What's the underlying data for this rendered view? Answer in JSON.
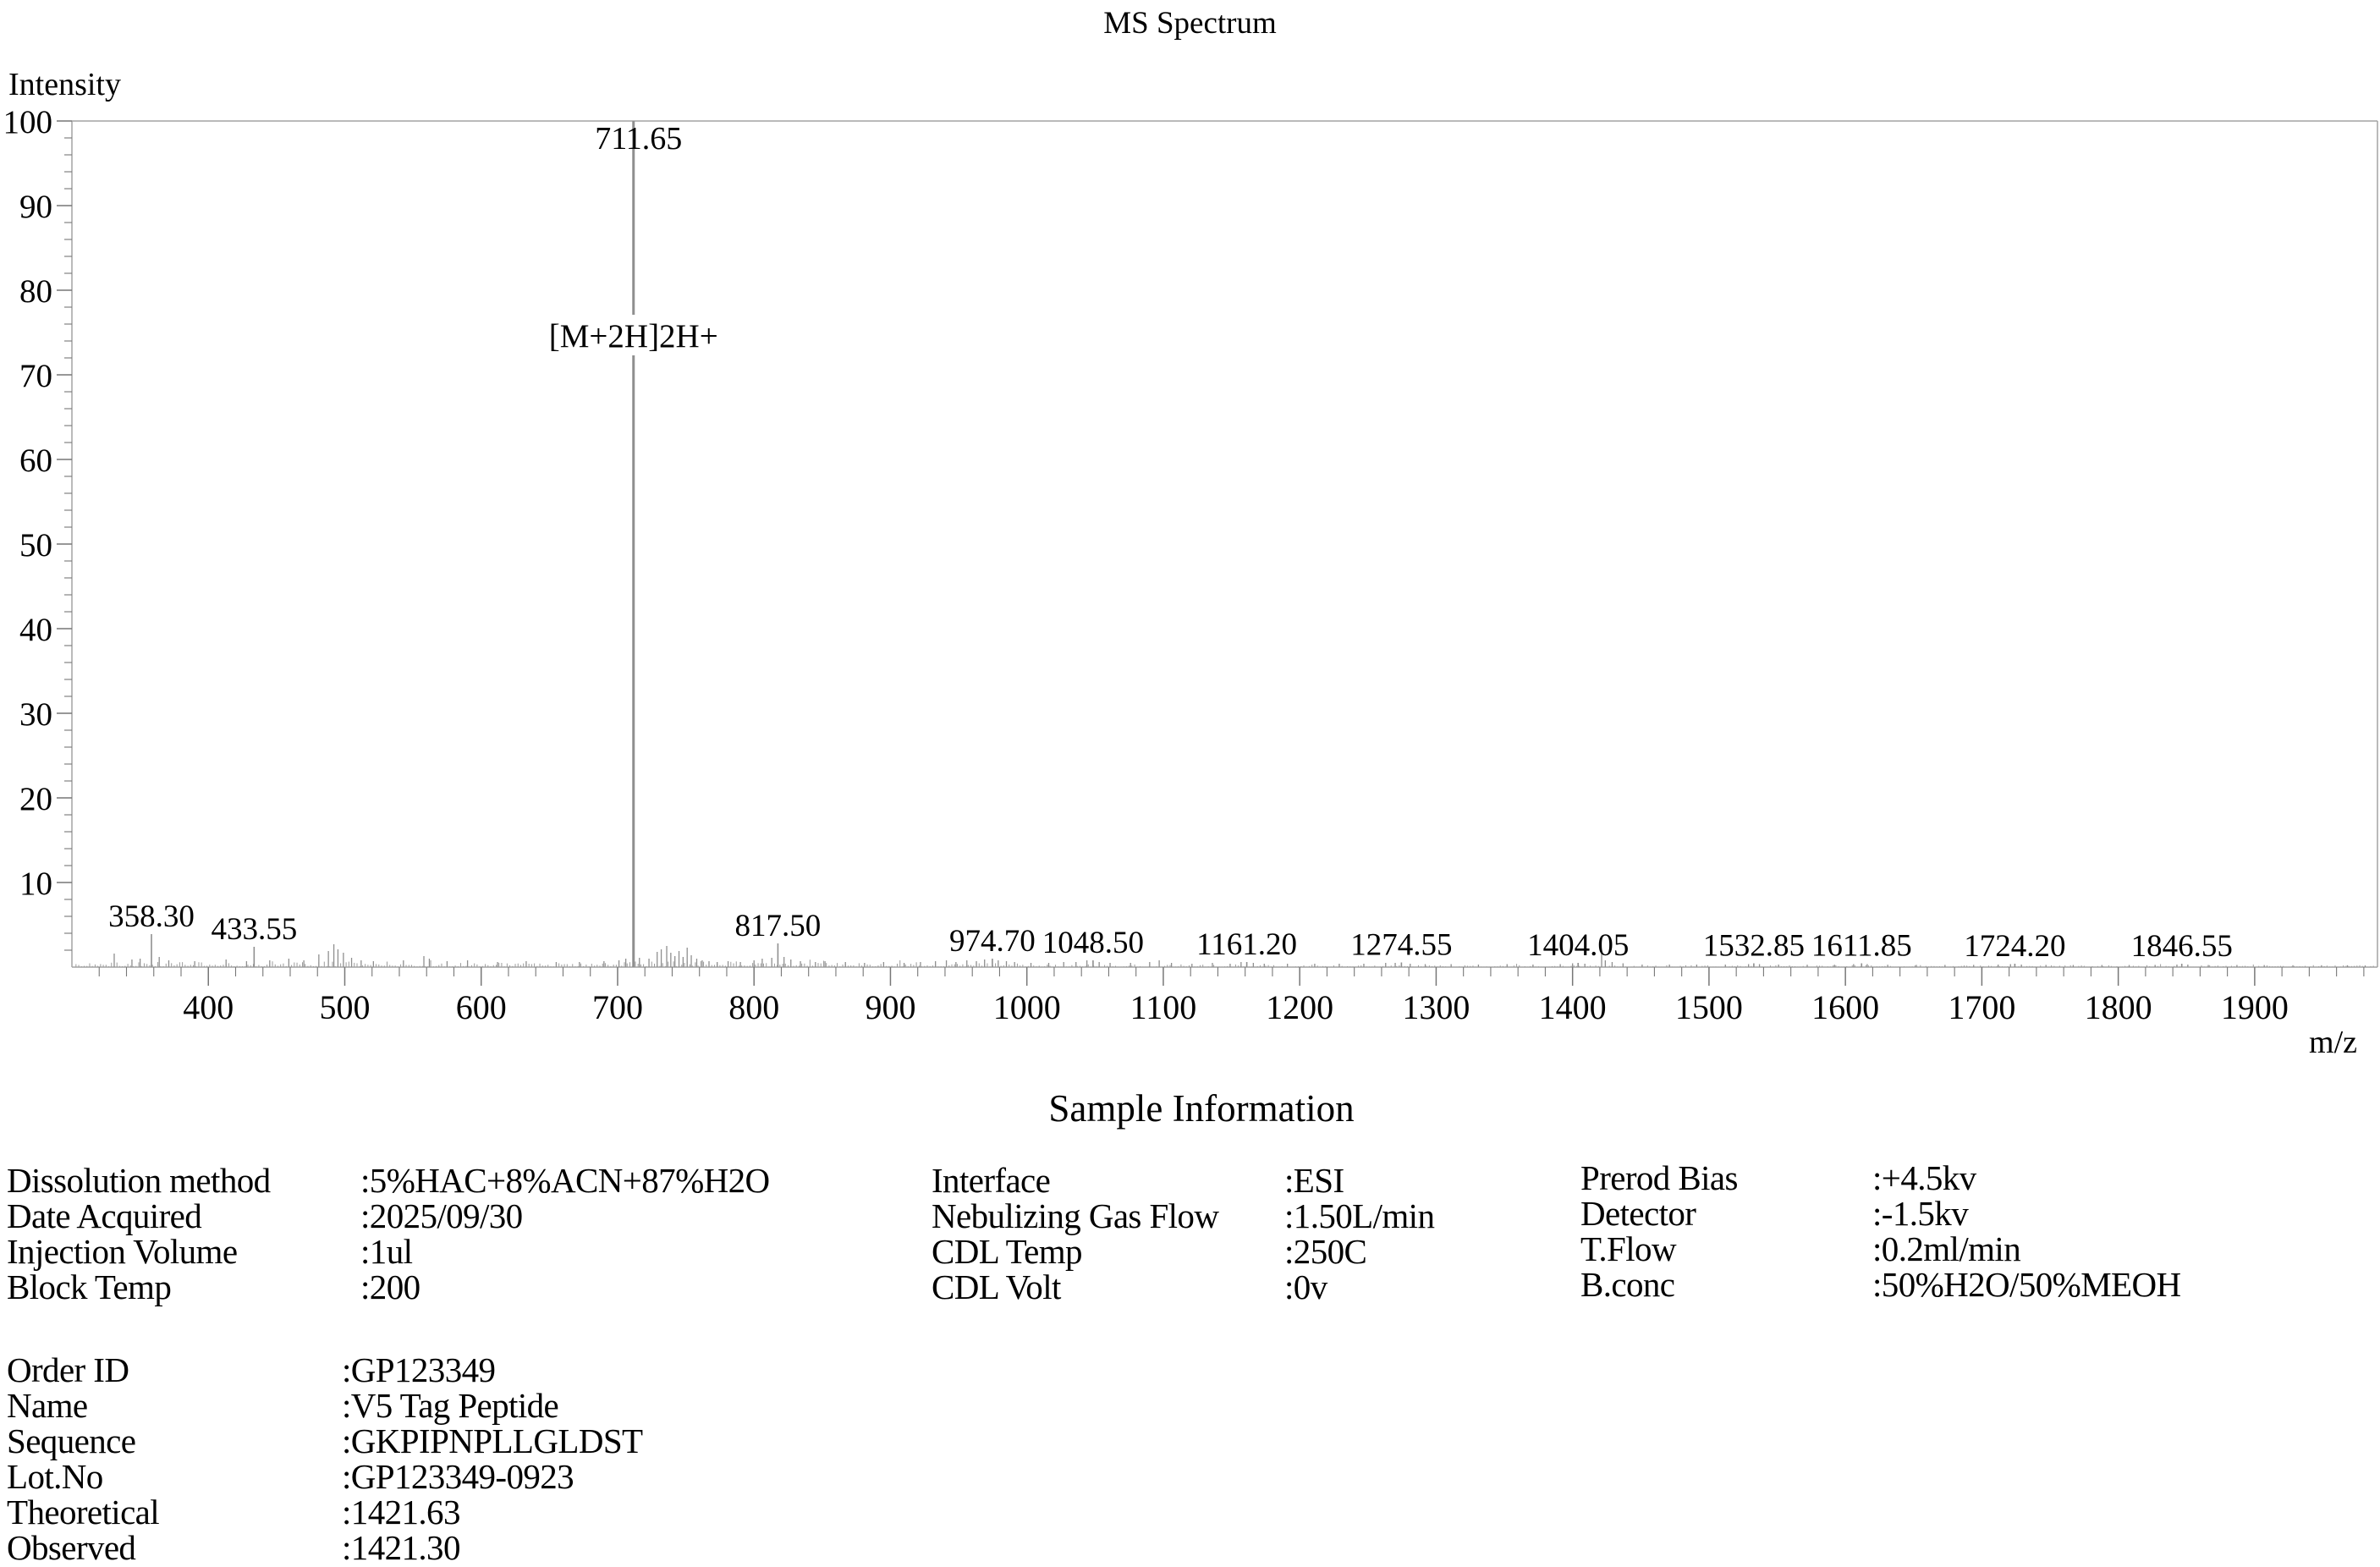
{
  "title": "MS Spectrum",
  "chart_data": {
    "type": "bar",
    "variant": "mass-spectrum-stick-plot",
    "title": "MS Spectrum",
    "xlabel": "m/z",
    "ylabel": "Intensity",
    "xlim": [
      300,
      1990
    ],
    "ylim": [
      0,
      100
    ],
    "grid": false,
    "legend": false,
    "x_major_ticks": [
      400,
      500,
      600,
      700,
      800,
      900,
      1000,
      1100,
      1200,
      1300,
      1400,
      1500,
      1600,
      1700,
      1800,
      1900
    ],
    "x_minor_tick_step": 20,
    "y_major_ticks": [
      10,
      20,
      30,
      40,
      50,
      60,
      70,
      80,
      90,
      100
    ],
    "y_minor_tick_step": 2,
    "labeled_peaks": [
      {
        "mz": 358.3,
        "intensity": 3.9,
        "label": "358.30"
      },
      {
        "mz": 433.55,
        "intensity": 2.4,
        "label": "433.55"
      },
      {
        "mz": 711.65,
        "intensity": 100,
        "label": "711.65"
      },
      {
        "mz": 817.5,
        "intensity": 2.8,
        "label": "817.50"
      },
      {
        "mz": 974.7,
        "intensity": 1.0,
        "label": "974.70"
      },
      {
        "mz": 1048.5,
        "intensity": 0.8,
        "label": "1048.50"
      },
      {
        "mz": 1161.2,
        "intensity": 0.6,
        "label": "1161.20"
      },
      {
        "mz": 1274.55,
        "intensity": 0.55,
        "label": "1274.55"
      },
      {
        "mz": 1404.05,
        "intensity": 0.5,
        "label": "1404.05"
      },
      {
        "mz": 1532.85,
        "intensity": 0.45,
        "label": "1532.85"
      },
      {
        "mz": 1611.85,
        "intensity": 0.45,
        "label": "1611.85"
      },
      {
        "mz": 1724.2,
        "intensity": 0.4,
        "label": "1724.20"
      },
      {
        "mz": 1846.55,
        "intensity": 0.4,
        "label": "1846.55"
      }
    ],
    "annotation": {
      "text": "[M+2H]2H+",
      "mz": 711.65,
      "y_intensity": 73.3
    },
    "unlabeled_peaks": [
      [
        331,
        1.6
      ],
      [
        344,
        0.9
      ],
      [
        350,
        1.0
      ],
      [
        364,
        1.2
      ],
      [
        371,
        0.8
      ],
      [
        390,
        0.7
      ],
      [
        413,
        0.9
      ],
      [
        428,
        0.7
      ],
      [
        445,
        0.8
      ],
      [
        459,
        1.0
      ],
      [
        470,
        0.8
      ],
      [
        481,
        1.5
      ],
      [
        488,
        1.9
      ],
      [
        492,
        2.7
      ],
      [
        495,
        2.1
      ],
      [
        499,
        1.7
      ],
      [
        505,
        1.1
      ],
      [
        512,
        0.8
      ],
      [
        521,
        0.7
      ],
      [
        543,
        0.8
      ],
      [
        558,
        1.3
      ],
      [
        562,
        1.0
      ],
      [
        575,
        0.7
      ],
      [
        590,
        0.8
      ],
      [
        612,
        0.6
      ],
      [
        633,
        0.7
      ],
      [
        655,
        0.6
      ],
      [
        672,
        0.6
      ],
      [
        690,
        0.7
      ],
      [
        701,
        0.8
      ],
      [
        706,
        1.0
      ],
      [
        716,
        1.1
      ],
      [
        723,
        1.0
      ],
      [
        729,
        1.8
      ],
      [
        732,
        2.1
      ],
      [
        736,
        2.5
      ],
      [
        739,
        1.7
      ],
      [
        742,
        1.3
      ],
      [
        745,
        1.9
      ],
      [
        748,
        1.2
      ],
      [
        751,
        2.3
      ],
      [
        754,
        1.4
      ],
      [
        758,
        1.0
      ],
      [
        762,
        0.8
      ],
      [
        767,
        0.7
      ],
      [
        773,
        0.6
      ],
      [
        781,
        0.7
      ],
      [
        790,
        0.6
      ],
      [
        800,
        0.8
      ],
      [
        806,
        1.0
      ],
      [
        813,
        1.1
      ],
      [
        822,
        1.2
      ],
      [
        827,
        0.9
      ],
      [
        834,
        0.7
      ],
      [
        845,
        0.6
      ],
      [
        852,
        0.7
      ],
      [
        867,
        0.6
      ],
      [
        881,
        0.5
      ],
      [
        895,
        0.6
      ],
      [
        910,
        0.5
      ],
      [
        922,
        0.6
      ],
      [
        933,
        0.7
      ],
      [
        941,
        0.8
      ],
      [
        948,
        0.6
      ],
      [
        956,
        0.8
      ],
      [
        963,
        0.7
      ],
      [
        969,
        0.9
      ],
      [
        979,
        0.8
      ],
      [
        985,
        0.7
      ],
      [
        991,
        0.6
      ],
      [
        1003,
        0.5
      ],
      [
        1016,
        0.5
      ],
      [
        1027,
        0.6
      ],
      [
        1036,
        0.6
      ],
      [
        1044,
        0.8
      ],
      [
        1053,
        0.6
      ],
      [
        1061,
        0.5
      ],
      [
        1076,
        0.5
      ],
      [
        1090,
        0.6
      ],
      [
        1097,
        0.8
      ],
      [
        1106,
        0.5
      ],
      [
        1121,
        0.4
      ],
      [
        1136,
        0.5
      ],
      [
        1149,
        0.4
      ],
      [
        1157,
        0.6
      ],
      [
        1166,
        0.5
      ],
      [
        1174,
        0.4
      ],
      [
        1191,
        0.4
      ],
      [
        1211,
        0.4
      ],
      [
        1229,
        0.4
      ],
      [
        1247,
        0.4
      ],
      [
        1263,
        0.5
      ],
      [
        1270,
        0.5
      ],
      [
        1281,
        0.4
      ],
      [
        1292,
        0.35
      ],
      [
        1311,
        0.35
      ],
      [
        1331,
        0.3
      ],
      [
        1352,
        0.35
      ],
      [
        1371,
        0.3
      ],
      [
        1391,
        0.35
      ],
      [
        1400,
        0.45
      ],
      [
        1409,
        0.4
      ],
      [
        1421.3,
        1.9
      ],
      [
        1424,
        0.8
      ],
      [
        1429,
        0.6
      ],
      [
        1437,
        0.45
      ],
      [
        1451,
        0.3
      ],
      [
        1471,
        0.3
      ],
      [
        1491,
        0.3
      ],
      [
        1512,
        0.3
      ],
      [
        1529,
        0.35
      ],
      [
        1537,
        0.35
      ],
      [
        1551,
        0.3
      ],
      [
        1572,
        0.28
      ],
      [
        1592,
        0.28
      ],
      [
        1606,
        0.35
      ],
      [
        1616,
        0.35
      ],
      [
        1631,
        0.28
      ],
      [
        1652,
        0.26
      ],
      [
        1673,
        0.26
      ],
      [
        1694,
        0.26
      ],
      [
        1712,
        0.3
      ],
      [
        1721,
        0.35
      ],
      [
        1729,
        0.3
      ],
      [
        1747,
        0.26
      ],
      [
        1767,
        0.25
      ],
      [
        1788,
        0.25
      ],
      [
        1808,
        0.25
      ],
      [
        1827,
        0.26
      ],
      [
        1843,
        0.3
      ],
      [
        1851,
        0.3
      ],
      [
        1866,
        0.25
      ],
      [
        1887,
        0.25
      ],
      [
        1907,
        0.24
      ],
      [
        1928,
        0.22
      ],
      [
        1949,
        0.22
      ],
      [
        1968,
        0.22
      ],
      [
        1981,
        0.2
      ]
    ],
    "noise": {
      "seed": 17,
      "mz_step": 2,
      "regions": [
        [
          300,
          430,
          1.0
        ],
        [
          430,
          520,
          1.05
        ],
        [
          520,
          700,
          0.8
        ],
        [
          700,
          790,
          1.1
        ],
        [
          790,
          1000,
          0.75
        ],
        [
          1000,
          1300,
          0.5
        ],
        [
          1300,
          1990,
          0.36
        ]
      ]
    },
    "colors": {
      "peak_line": "#8f8f8f",
      "noise_line": "#9c9c9c",
      "frame_line": "#a3a3a3",
      "tick_line": "#777777",
      "text": "#000000"
    }
  },
  "sample_info": {
    "heading": "Sample Information",
    "columns": [
      {
        "rows": [
          {
            "label": "Dissolution method",
            "value": ":5%HAC+8%ACN+87%H2O"
          },
          {
            "label": "Date Acquired",
            "value": ":2025/09/30"
          },
          {
            "label": "Injection Volume",
            "value": ":1ul"
          },
          {
            "label": "Block Temp",
            "value": ":200"
          }
        ]
      },
      {
        "rows": [
          {
            "label": "Interface",
            "value": ":ESI"
          },
          {
            "label": "Nebulizing Gas Flow",
            "value": ":1.50L/min"
          },
          {
            "label": "CDL Temp",
            "value": ":250C"
          },
          {
            "label": "CDL Volt",
            "value": ":0v"
          }
        ]
      },
      {
        "rows": [
          {
            "label": "Prerod Bias",
            "value": ":+4.5kv"
          },
          {
            "label": "Detector",
            "value": ":-1.5kv"
          },
          {
            "label": "T.Flow",
            "value": ":0.2ml/min"
          },
          {
            "label": "B.conc",
            "value": ":50%H2O/50%MEOH"
          }
        ]
      }
    ],
    "order_block": {
      "rows": [
        {
          "label": "Order ID",
          "value": ":GP123349"
        },
        {
          "label": "Name",
          "value": ":V5 Tag Peptide"
        },
        {
          "label": "Sequence",
          "value": ":GKPIPNPLLGLDST"
        },
        {
          "label": "Lot.No",
          "value": ":GP123349-0923"
        },
        {
          "label": "Theoretical",
          "value": ":1421.63"
        },
        {
          "label": "Observed",
          "value": ":1421.30"
        }
      ]
    }
  }
}
